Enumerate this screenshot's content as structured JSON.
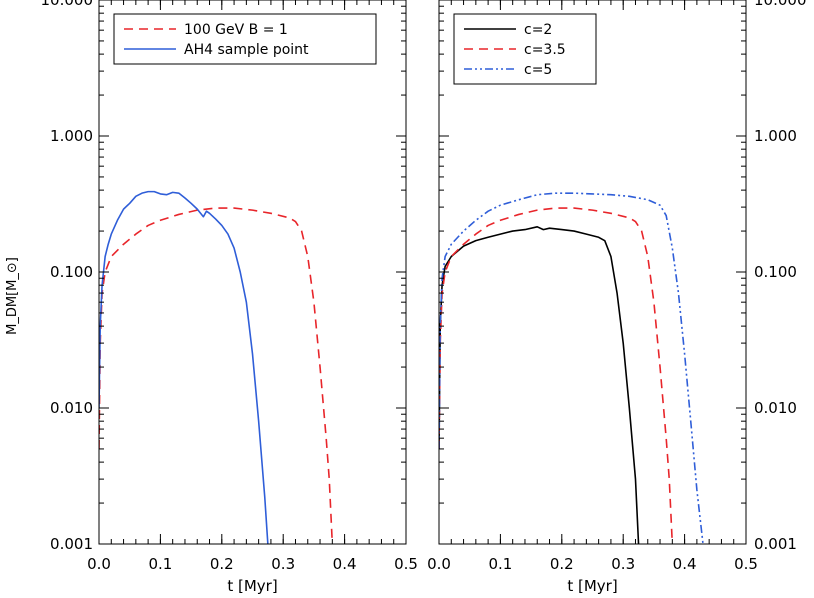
{
  "chart_data": [
    {
      "type": "line",
      "xlabel": "t [Myr]",
      "ylabel": "M_DM[M_⊙]",
      "xlim": [
        0.0,
        0.5
      ],
      "ylim": [
        0.001,
        10.0
      ],
      "yscale": "log",
      "x_ticks": [
        "0.0",
        "0.1",
        "0.2",
        "0.3",
        "0.4",
        "0.5"
      ],
      "y_ticks": [
        "0.001",
        "0.010",
        "0.100",
        "1.000",
        "10.000"
      ],
      "legend_position": "top-left",
      "series": [
        {
          "name": "100 GeV B = 1",
          "color": "#e8252a",
          "style": "dashed",
          "x": [
            0.0,
            0.002,
            0.005,
            0.01,
            0.02,
            0.04,
            0.06,
            0.08,
            0.1,
            0.13,
            0.16,
            0.19,
            0.22,
            0.25,
            0.28,
            0.31,
            0.32,
            0.33,
            0.34,
            0.35,
            0.36,
            0.37,
            0.375,
            0.38
          ],
          "y": [
            0.005,
            0.03,
            0.07,
            0.1,
            0.13,
            0.16,
            0.19,
            0.22,
            0.24,
            0.265,
            0.285,
            0.295,
            0.295,
            0.285,
            0.27,
            0.25,
            0.235,
            0.2,
            0.13,
            0.06,
            0.02,
            0.006,
            0.003,
            0.001
          ]
        },
        {
          "name": "AH4 sample point",
          "color": "#2f5ed8",
          "style": "solid",
          "x": [
            0.0,
            0.002,
            0.005,
            0.01,
            0.015,
            0.02,
            0.03,
            0.04,
            0.05,
            0.06,
            0.07,
            0.08,
            0.09,
            0.1,
            0.11,
            0.12,
            0.13,
            0.14,
            0.15,
            0.16,
            0.17,
            0.175,
            0.18,
            0.19,
            0.2,
            0.21,
            0.22,
            0.23,
            0.24,
            0.25,
            0.26,
            0.27,
            0.275
          ],
          "y": [
            0.01,
            0.04,
            0.08,
            0.13,
            0.16,
            0.19,
            0.24,
            0.29,
            0.32,
            0.36,
            0.38,
            0.39,
            0.39,
            0.375,
            0.37,
            0.385,
            0.38,
            0.35,
            0.32,
            0.29,
            0.255,
            0.28,
            0.27,
            0.245,
            0.22,
            0.19,
            0.15,
            0.1,
            0.06,
            0.025,
            0.008,
            0.0022,
            0.001
          ]
        }
      ]
    },
    {
      "type": "line",
      "xlabel": "t [Myr]",
      "ylabel": "",
      "xlim": [
        0.0,
        0.5
      ],
      "ylim": [
        0.001,
        10.0
      ],
      "yscale": "log",
      "x_ticks": [
        "0.0",
        "0.1",
        "0.2",
        "0.3",
        "0.4",
        "0.5"
      ],
      "y_ticks": [
        "0.001",
        "0.010",
        "0.100",
        "1.000",
        "10.000"
      ],
      "legend_position": "top-left",
      "series": [
        {
          "name": "c=2",
          "color": "#000000",
          "style": "solid",
          "x": [
            0.0,
            0.002,
            0.005,
            0.01,
            0.02,
            0.04,
            0.06,
            0.08,
            0.1,
            0.12,
            0.14,
            0.16,
            0.17,
            0.18,
            0.2,
            0.22,
            0.24,
            0.26,
            0.27,
            0.28,
            0.29,
            0.3,
            0.31,
            0.32,
            0.325
          ],
          "y": [
            0.005,
            0.04,
            0.08,
            0.11,
            0.13,
            0.155,
            0.17,
            0.18,
            0.19,
            0.2,
            0.205,
            0.215,
            0.205,
            0.21,
            0.205,
            0.2,
            0.19,
            0.18,
            0.17,
            0.13,
            0.07,
            0.03,
            0.01,
            0.003,
            0.001
          ]
        },
        {
          "name": "c=3.5",
          "color": "#e8252a",
          "style": "dashed",
          "x": [
            0.0,
            0.002,
            0.005,
            0.01,
            0.02,
            0.04,
            0.06,
            0.08,
            0.1,
            0.13,
            0.16,
            0.19,
            0.22,
            0.25,
            0.28,
            0.31,
            0.32,
            0.33,
            0.34,
            0.35,
            0.36,
            0.37,
            0.375,
            0.38
          ],
          "y": [
            0.005,
            0.03,
            0.07,
            0.1,
            0.13,
            0.16,
            0.19,
            0.22,
            0.24,
            0.265,
            0.285,
            0.295,
            0.295,
            0.285,
            0.27,
            0.25,
            0.235,
            0.2,
            0.13,
            0.06,
            0.02,
            0.006,
            0.003,
            0.001
          ]
        },
        {
          "name": "c=5",
          "color": "#2f5ed8",
          "style": "dashdotdot",
          "x": [
            0.0,
            0.002,
            0.005,
            0.01,
            0.02,
            0.04,
            0.06,
            0.08,
            0.1,
            0.13,
            0.16,
            0.19,
            0.22,
            0.25,
            0.28,
            0.31,
            0.34,
            0.36,
            0.37,
            0.38,
            0.39,
            0.4,
            0.41,
            0.42,
            0.43
          ],
          "y": [
            0.005,
            0.04,
            0.09,
            0.13,
            0.16,
            0.2,
            0.24,
            0.28,
            0.31,
            0.34,
            0.37,
            0.38,
            0.38,
            0.375,
            0.37,
            0.36,
            0.34,
            0.31,
            0.26,
            0.15,
            0.07,
            0.025,
            0.008,
            0.0025,
            0.001
          ]
        }
      ]
    }
  ]
}
